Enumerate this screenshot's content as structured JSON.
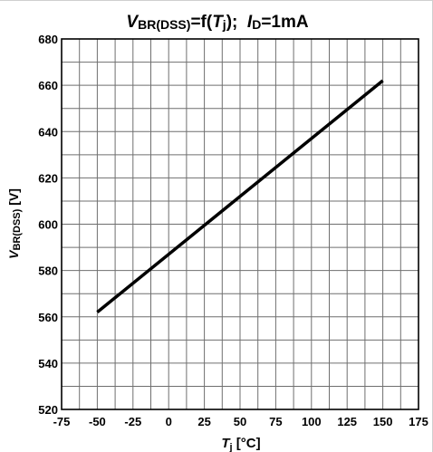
{
  "chart_data": {
    "type": "line",
    "title_parts": {
      "v": "V",
      "v_sub": "BR(DSS)",
      "eq": "=f(",
      "t": "T",
      "t_sub": "j",
      "close": ");  ",
      "i": "I",
      "i_sub": "D",
      "val": "=1mA"
    },
    "xlabel_parts": {
      "t": "T",
      "t_sub": "j",
      "unit": " [°C]"
    },
    "ylabel_parts": {
      "v": "V",
      "v_sub": "BR(DSS)",
      "unit": " [V]"
    },
    "xlim": [
      -75,
      175
    ],
    "ylim": [
      520,
      680
    ],
    "x_ticks": [
      "-75",
      "-50",
      "-25",
      "0",
      "25",
      "50",
      "75",
      "100",
      "125",
      "150",
      "175"
    ],
    "y_ticks": [
      "520",
      "540",
      "560",
      "580",
      "600",
      "620",
      "640",
      "660",
      "680"
    ],
    "grid": true,
    "series": [
      {
        "x": [
          -50,
          150
        ],
        "y": [
          562,
          662
        ],
        "color": "#000000"
      }
    ]
  }
}
